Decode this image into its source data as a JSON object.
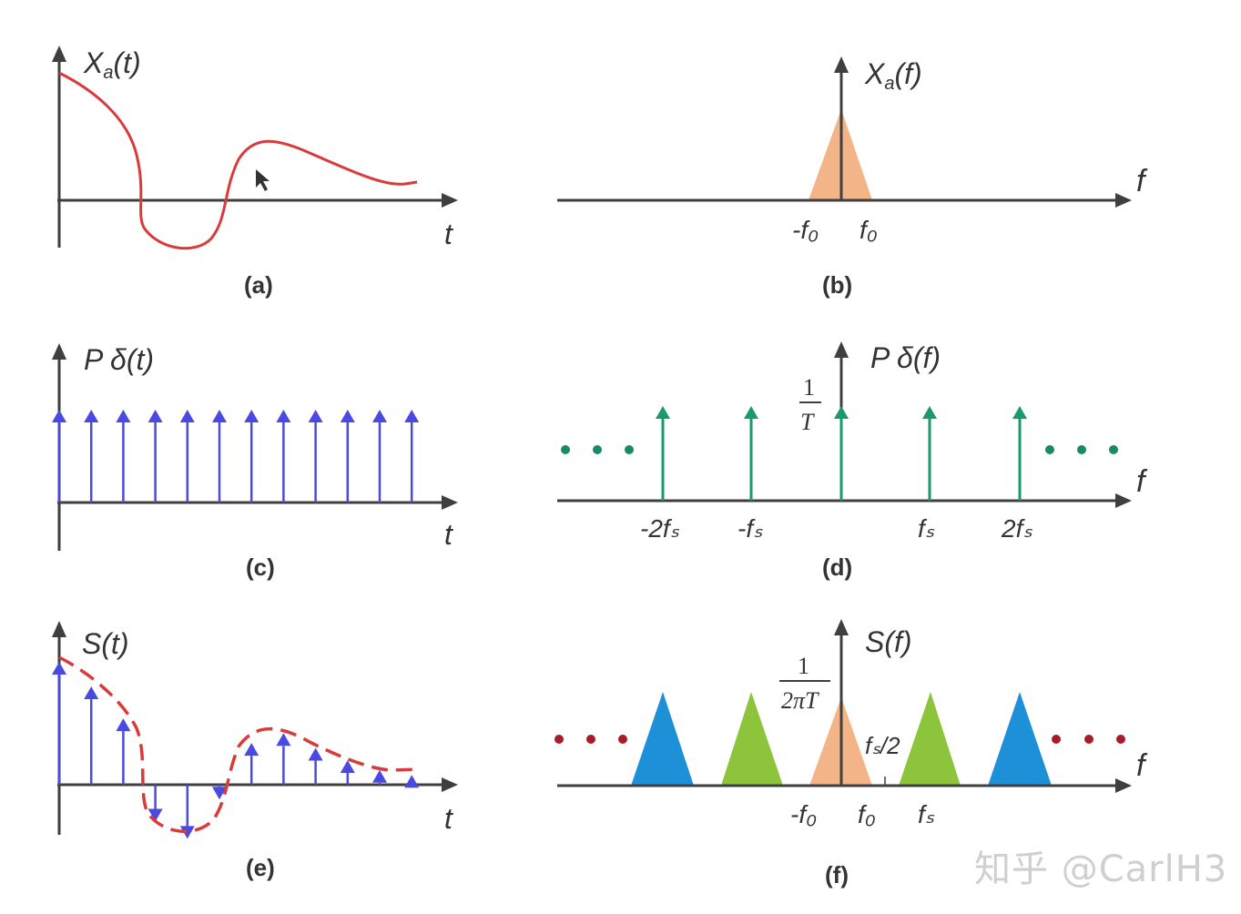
{
  "colors": {
    "axis": "#3f3f3f",
    "signal_red": "#d93a3a",
    "impulse_blue": "#4a4ae0",
    "impulse_green": "#1a9a6a",
    "orange_band": "#f3b487",
    "green_band": "#8cc43c",
    "blue_band": "#1d90d8",
    "dots_green": "#1a8a62",
    "dots_red": "#a81c2a"
  },
  "panels": {
    "a": {
      "caption": "(a)",
      "ylabel_main": "X",
      "ylabel_sub": "a",
      "ylabel_arg": "(t)",
      "xlabel": "t"
    },
    "b": {
      "caption": "(b)",
      "ylabel_main": "X",
      "ylabel_sub": "a",
      "ylabel_arg": "(f)",
      "xlabel": "f",
      "ticks": [
        "-f₀",
        "f₀"
      ]
    },
    "c": {
      "caption": "(c)",
      "ylabel": "P δ(t)",
      "xlabel": "t",
      "impulse_count": 12
    },
    "d": {
      "caption": "(d)",
      "ylabel": "P δ(f)",
      "xlabel": "f",
      "height_num": "1",
      "height_den": "T",
      "ticks": [
        "-2fₛ",
        "-fₛ",
        "fₛ",
        "2fₛ"
      ],
      "ellipsis": "• • •"
    },
    "e": {
      "caption": "(e)",
      "ylabel": "S(t)",
      "xlabel": "t"
    },
    "f": {
      "caption": "(f)",
      "ylabel": "S(f)",
      "xlabel": "f",
      "height_num": "1",
      "height_den": "2πT",
      "ticks": [
        "-f₀",
        "f₀",
        "fₛ"
      ],
      "half_fs": "fₛ/2"
    }
  },
  "watermark": "知乎 @CarlH3",
  "chart_data": [
    {
      "panel": "a",
      "type": "line",
      "title": "Xa(t)",
      "xlabel": "t",
      "description": "Continuous analog signal decaying with one negative lobe"
    },
    {
      "panel": "b",
      "type": "area",
      "title": "Xa(f)",
      "xlabel": "f",
      "categories": [
        "-f0",
        "f0"
      ],
      "description": "Band-limited triangular spectrum between -f0 and f0"
    },
    {
      "panel": "c",
      "type": "bar",
      "title": "Pδ(t)",
      "xlabel": "t",
      "values": [
        1,
        1,
        1,
        1,
        1,
        1,
        1,
        1,
        1,
        1,
        1,
        1
      ],
      "description": "Periodic unit impulse train"
    },
    {
      "panel": "d",
      "type": "bar",
      "title": "Pδ(f)",
      "xlabel": "f",
      "categories": [
        "-2fs",
        "-fs",
        "0",
        "fs",
        "2fs"
      ],
      "values": [
        1,
        1,
        1,
        1,
        1
      ],
      "ylabel": "1/T"
    },
    {
      "panel": "e",
      "type": "bar",
      "title": "S(t)",
      "xlabel": "t",
      "values": [
        1.0,
        0.8,
        0.54,
        -0.3,
        -0.44,
        -0.12,
        0.34,
        0.42,
        0.3,
        0.2,
        0.12,
        0.08
      ],
      "description": "Sampled signal with analog envelope (dashed)"
    },
    {
      "panel": "f",
      "type": "area",
      "title": "S(f)",
      "xlabel": "f",
      "categories": [
        "-2fs",
        "-fs",
        "0",
        "fs",
        "2fs"
      ],
      "ylabel": "1/(2πT)",
      "annotations": [
        "-f0",
        "f0",
        "fs/2",
        "fs"
      ],
      "description": "Replicated spectra at multiples of fs"
    }
  ]
}
